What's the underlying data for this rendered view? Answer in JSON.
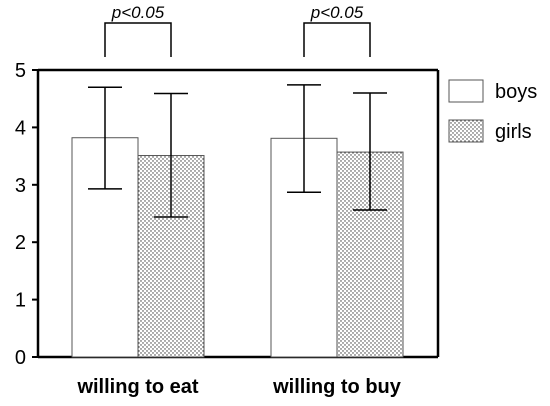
{
  "chart_data": {
    "type": "bar",
    "categories": [
      "willing to eat",
      "willing to buy"
    ],
    "series": [
      {
        "name": "boys",
        "values": [
          3.82,
          3.81
        ],
        "error_low": [
          2.93,
          2.87
        ],
        "error_high": [
          4.7,
          4.74
        ],
        "pattern": "none"
      },
      {
        "name": "girls",
        "values": [
          3.51,
          3.57
        ],
        "error_low": [
          2.44,
          2.56
        ],
        "error_high": [
          4.59,
          4.6
        ],
        "pattern": "dots"
      }
    ],
    "ylim": [
      0,
      5
    ],
    "yticks": [
      "0",
      "1",
      "2",
      "3",
      "4",
      "5"
    ],
    "significance": [
      {
        "category": "willing to eat",
        "label": "p<0.05"
      },
      {
        "category": "willing to buy",
        "label": "p<0.05"
      }
    ],
    "xlabel": "",
    "ylabel": "",
    "grid": false,
    "legend_placement": "right",
    "colors": {
      "axis": "#000000",
      "bar_fill": "#ffffff",
      "bar_edge": "#555555",
      "dot": "#333333"
    }
  }
}
